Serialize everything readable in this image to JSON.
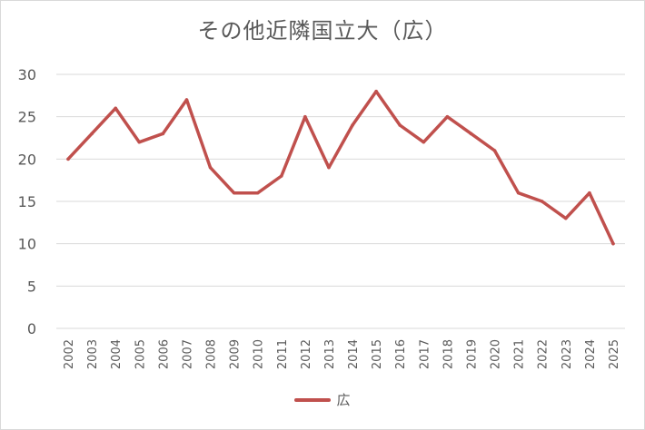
{
  "chart_data": {
    "type": "line",
    "title": "その他近隣国立大（広）",
    "xlabel": "",
    "ylabel": "",
    "categories": [
      "2002",
      "2003",
      "2004",
      "2005",
      "2006",
      "2007",
      "2008",
      "2009",
      "2010",
      "2011",
      "2012",
      "2013",
      "2014",
      "2015",
      "2016",
      "2017",
      "2018",
      "2019",
      "2020",
      "2021",
      "2022",
      "2023",
      "2024",
      "2025"
    ],
    "series": [
      {
        "name": "広",
        "values": [
          20,
          23,
          26,
          22,
          23,
          27,
          19,
          16,
          16,
          18,
          25,
          19,
          24,
          28,
          24,
          22,
          25,
          23,
          21,
          16,
          15,
          13,
          16,
          10
        ]
      }
    ],
    "ylim": [
      0,
      30
    ],
    "yticks": [
      0,
      5,
      10,
      15,
      20,
      25,
      30
    ],
    "grid": true,
    "legend": "bottom",
    "colors": {
      "series": "#c0504d",
      "grid": "#d9d9d9",
      "text": "#595959"
    }
  }
}
